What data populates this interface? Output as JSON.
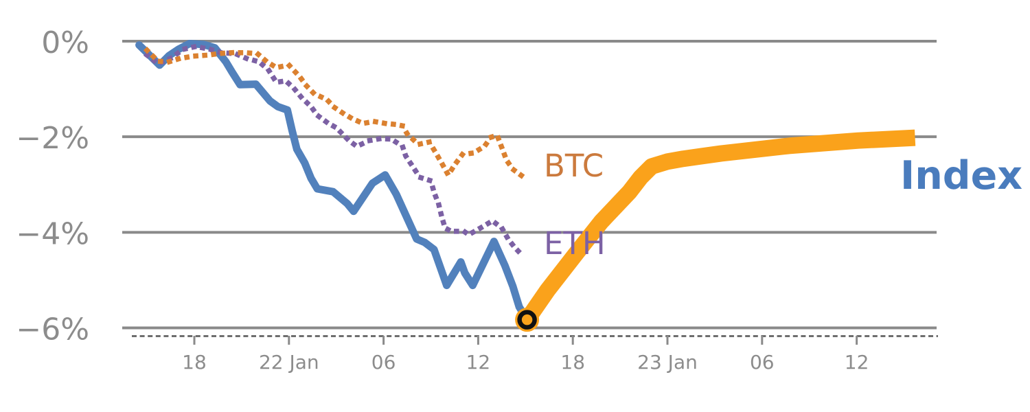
{
  "chart_data": {
    "type": "line",
    "title": "",
    "x_axis": {
      "unit": "hours since first tick (21 Jan 18:00), ticks every 6 hours",
      "tick_labels": [
        "18",
        "22 Jan",
        "06",
        "12",
        "18",
        "23 Jan",
        "06",
        "12"
      ],
      "tick_hours": [
        0,
        6,
        12,
        18,
        24,
        30,
        36,
        42
      ],
      "range_hours": [
        -4.6,
        47.1
      ],
      "grid": false
    },
    "y_axis": {
      "unit": "percent change",
      "tick_labels": [
        "0%",
        "−2%",
        "−4%",
        "−6%"
      ],
      "tick_values": [
        0,
        -2,
        -4,
        -6
      ],
      "range": [
        -6.35,
        0.15
      ],
      "grid": true
    },
    "grid_color": "#8a8a8a",
    "axis_line_color": "#6e6e6e",
    "tick_text_color": "#8c8c8c",
    "series": [
      {
        "id": "index-history",
        "name": "Index (history)",
        "style": "solid",
        "width": 11,
        "cap": "round",
        "color": "#5281bc",
        "points": [
          [
            -3.5,
            -0.08
          ],
          [
            -2.2,
            -0.5
          ],
          [
            -1.6,
            -0.3
          ],
          [
            -1.0,
            -0.17
          ],
          [
            -0.3,
            -0.05
          ],
          [
            0.6,
            -0.07
          ],
          [
            1.3,
            -0.14
          ],
          [
            2.0,
            -0.43
          ],
          [
            2.4,
            -0.65
          ],
          [
            2.9,
            -0.91
          ],
          [
            3.9,
            -0.9
          ],
          [
            4.8,
            -1.25
          ],
          [
            5.3,
            -1.37
          ],
          [
            5.9,
            -1.44
          ],
          [
            6.2,
            -1.87
          ],
          [
            6.5,
            -2.26
          ],
          [
            7.0,
            -2.55
          ],
          [
            7.4,
            -2.87
          ],
          [
            7.8,
            -3.09
          ],
          [
            8.8,
            -3.15
          ],
          [
            9.7,
            -3.4
          ],
          [
            10.1,
            -3.56
          ],
          [
            11.3,
            -2.97
          ],
          [
            12.1,
            -2.8
          ],
          [
            12.8,
            -3.2
          ],
          [
            14.1,
            -4.14
          ],
          [
            14.6,
            -4.21
          ],
          [
            15.2,
            -4.36
          ],
          [
            16.0,
            -5.11
          ],
          [
            16.9,
            -4.62
          ],
          [
            17.15,
            -4.85
          ],
          [
            17.65,
            -5.11
          ],
          [
            19.0,
            -4.19
          ],
          [
            19.7,
            -4.7
          ],
          [
            20.2,
            -5.13
          ],
          [
            20.6,
            -5.56
          ],
          [
            21.1,
            -5.83
          ]
        ]
      },
      {
        "id": "eth",
        "name": "ETH",
        "style": "dotted",
        "width": 7.5,
        "color": "#7c61a4",
        "points": [
          [
            -3.0,
            -0.29
          ],
          [
            -2.3,
            -0.47
          ],
          [
            -1.5,
            -0.36
          ],
          [
            -0.7,
            -0.17
          ],
          [
            0.1,
            -0.11
          ],
          [
            1.0,
            -0.17
          ],
          [
            1.7,
            -0.24
          ],
          [
            2.6,
            -0.26
          ],
          [
            3.3,
            -0.36
          ],
          [
            4.1,
            -0.43
          ],
          [
            4.7,
            -0.6
          ],
          [
            5.2,
            -0.86
          ],
          [
            5.8,
            -0.83
          ],
          [
            6.3,
            -0.98
          ],
          [
            6.8,
            -1.18
          ],
          [
            7.4,
            -1.37
          ],
          [
            7.8,
            -1.55
          ],
          [
            8.5,
            -1.72
          ],
          [
            9.0,
            -1.81
          ],
          [
            9.8,
            -2.08
          ],
          [
            10.3,
            -2.2
          ],
          [
            11.1,
            -2.08
          ],
          [
            11.8,
            -2.04
          ],
          [
            12.5,
            -2.05
          ],
          [
            13.2,
            -2.2
          ],
          [
            13.4,
            -2.4
          ],
          [
            14.3,
            -2.85
          ],
          [
            15.0,
            -2.92
          ],
          [
            15.2,
            -3.16
          ],
          [
            15.5,
            -3.42
          ],
          [
            15.7,
            -3.69
          ],
          [
            15.9,
            -3.91
          ],
          [
            16.3,
            -3.98
          ],
          [
            17.1,
            -3.98
          ],
          [
            17.4,
            -4.05
          ],
          [
            18.3,
            -3.88
          ],
          [
            18.9,
            -3.76
          ],
          [
            19.5,
            -3.91
          ],
          [
            19.9,
            -4.14
          ],
          [
            20.3,
            -4.31
          ],
          [
            20.7,
            -4.45
          ],
          [
            20.9,
            -4.48
          ]
        ]
      },
      {
        "id": "btc",
        "name": "BTC",
        "style": "dotted",
        "width": 7.5,
        "color": "#db8130",
        "points": [
          [
            -3.0,
            -0.19
          ],
          [
            -2.3,
            -0.42
          ],
          [
            -1.6,
            -0.43
          ],
          [
            -0.9,
            -0.36
          ],
          [
            0.0,
            -0.31
          ],
          [
            0.9,
            -0.29
          ],
          [
            1.5,
            -0.26
          ],
          [
            2.4,
            -0.24
          ],
          [
            3.2,
            -0.24
          ],
          [
            4.0,
            -0.26
          ],
          [
            4.6,
            -0.43
          ],
          [
            5.2,
            -0.55
          ],
          [
            6.0,
            -0.5
          ],
          [
            6.7,
            -0.75
          ],
          [
            7.1,
            -0.93
          ],
          [
            7.6,
            -1.1
          ],
          [
            8.4,
            -1.22
          ],
          [
            8.9,
            -1.39
          ],
          [
            9.4,
            -1.5
          ],
          [
            10.0,
            -1.62
          ],
          [
            10.7,
            -1.72
          ],
          [
            11.4,
            -1.68
          ],
          [
            12.1,
            -1.72
          ],
          [
            12.7,
            -1.74
          ],
          [
            13.2,
            -1.77
          ],
          [
            13.5,
            -1.94
          ],
          [
            14.2,
            -2.16
          ],
          [
            14.9,
            -2.11
          ],
          [
            15.3,
            -2.33
          ],
          [
            15.7,
            -2.56
          ],
          [
            16.1,
            -2.8
          ],
          [
            16.5,
            -2.59
          ],
          [
            17.0,
            -2.37
          ],
          [
            17.7,
            -2.34
          ],
          [
            18.4,
            -2.2
          ],
          [
            18.8,
            -2.01
          ],
          [
            19.2,
            -1.97
          ],
          [
            19.5,
            -2.23
          ],
          [
            19.8,
            -2.49
          ],
          [
            20.2,
            -2.68
          ],
          [
            20.9,
            -2.85
          ]
        ]
      },
      {
        "id": "index-projection",
        "name": "Index (continuation)",
        "style": "solid",
        "width": 24,
        "cap": "butt",
        "color": "#faa21b",
        "points": [
          [
            21.1,
            -5.83
          ],
          [
            22.4,
            -5.21
          ],
          [
            24.1,
            -4.49
          ],
          [
            25.8,
            -3.78
          ],
          [
            27.6,
            -3.15
          ],
          [
            28.3,
            -2.85
          ],
          [
            29.0,
            -2.62
          ],
          [
            30.0,
            -2.52
          ],
          [
            31.0,
            -2.46
          ],
          [
            33.4,
            -2.35
          ],
          [
            37.7,
            -2.19
          ],
          [
            42.1,
            -2.08
          ],
          [
            45.7,
            -2.02
          ]
        ]
      }
    ],
    "marker": {
      "type": "circle-ring",
      "x_hours": 21.1,
      "value_pct": -5.83,
      "halo_color": "#faa21b",
      "ring_color": "#111111"
    },
    "series_labels": [
      {
        "text": "BTC",
        "color": "#cb7a3d"
      },
      {
        "text": "ETH",
        "color": "#7c61a4"
      },
      {
        "text": "Index",
        "color": "#4a7cbd"
      }
    ]
  }
}
